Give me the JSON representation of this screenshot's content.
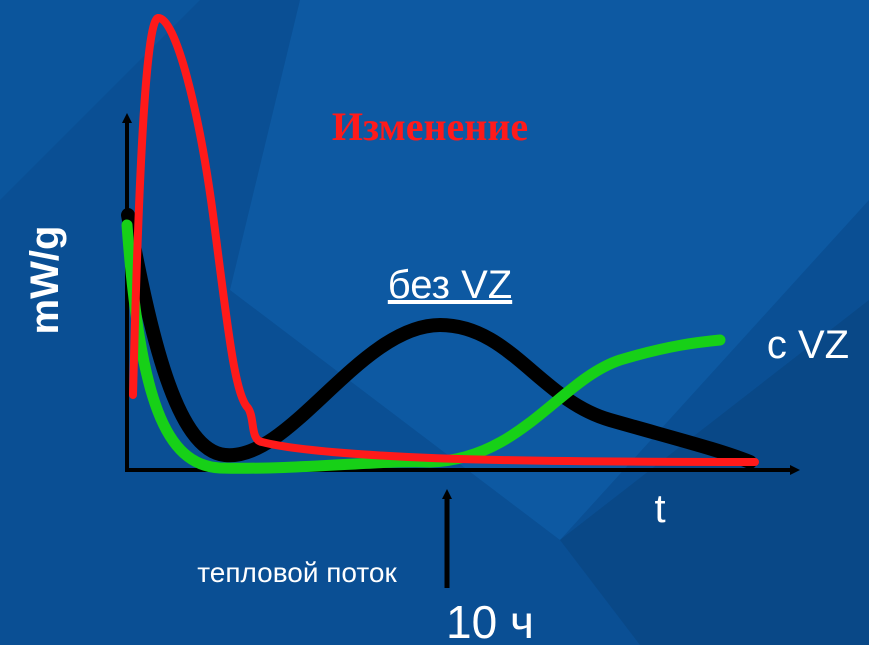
{
  "title": "Изменение",
  "y_axis_label": "mW/g",
  "x_axis_label": "t",
  "curve_labels": {
    "without": "без VZ",
    "with": "c VZ"
  },
  "marker": {
    "label": "тепловой поток",
    "time": "10 ч"
  }
}
